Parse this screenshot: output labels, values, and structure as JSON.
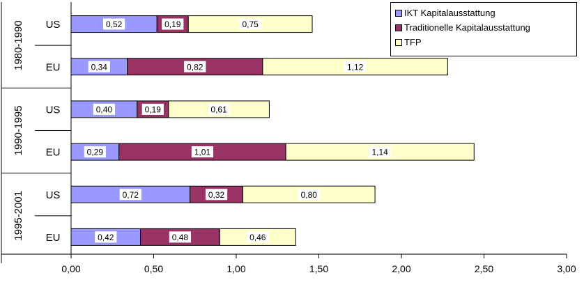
{
  "chart_data": {
    "type": "bar",
    "orientation": "horizontal",
    "stacked": true,
    "groups": [
      "1980-1990",
      "1990-1995",
      "1995-2001"
    ],
    "rows": [
      {
        "group": "1980-1990",
        "label": "US",
        "values": [
          "0,52",
          "0,19",
          "0,75"
        ],
        "nums": [
          0.52,
          0.19,
          0.75
        ]
      },
      {
        "group": "1980-1990",
        "label": "EU",
        "values": [
          "0,34",
          "0,82",
          "1,12"
        ],
        "nums": [
          0.34,
          0.82,
          1.12
        ]
      },
      {
        "group": "1990-1995",
        "label": "US",
        "values": [
          "0,40",
          "0,19",
          "0,61"
        ],
        "nums": [
          0.4,
          0.19,
          0.61
        ]
      },
      {
        "group": "1990-1995",
        "label": "EU",
        "values": [
          "0,29",
          "1,01",
          "1,14"
        ],
        "nums": [
          0.29,
          1.01,
          1.14
        ]
      },
      {
        "group": "1995-2001",
        "label": "US",
        "values": [
          "0,72",
          "0,32",
          "0,80"
        ],
        "nums": [
          0.72,
          0.32,
          0.8
        ]
      },
      {
        "group": "1995-2001",
        "label": "EU",
        "values": [
          "0,42",
          "0,48",
          "0,46"
        ],
        "nums": [
          0.42,
          0.48,
          0.46
        ]
      }
    ],
    "series": [
      {
        "name": "IKT Kapitalausstattung",
        "color": "#9999ff"
      },
      {
        "name": "Traditionelle Kapitalausstattung",
        "color": "#993366"
      },
      {
        "name": "TFP",
        "color": "#ffffcc"
      }
    ],
    "xlim": [
      0,
      3
    ],
    "xticks": [
      0,
      0.5,
      1,
      1.5,
      2,
      2.5,
      3
    ],
    "xtick_labels": [
      "0,00",
      "0,50",
      "1,00",
      "1,50",
      "2,00",
      "2,50",
      "3,00"
    ],
    "legend_position": "top-right",
    "grid": false
  }
}
